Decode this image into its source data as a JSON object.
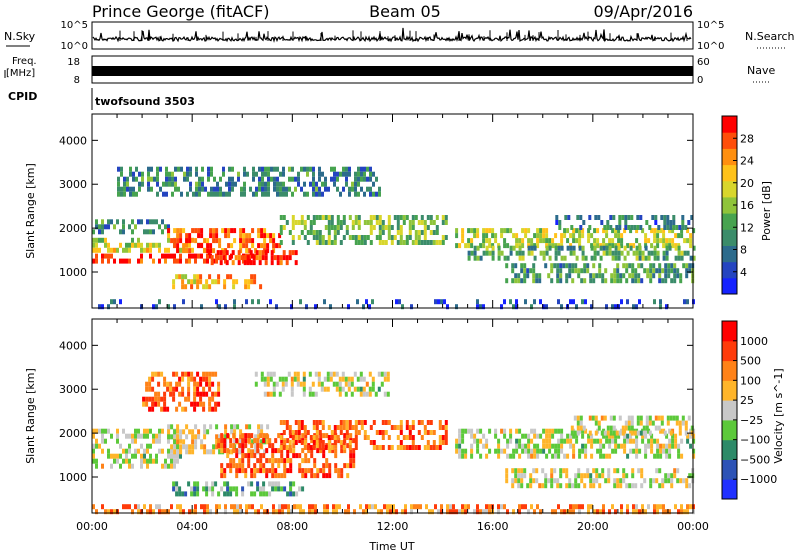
{
  "header": {
    "station": "Prince George (fitACF)",
    "beam": "Beam 05",
    "date": "09/Apr/2016"
  },
  "strips": {
    "nsky": {
      "label": "N.Sky",
      "ticks": [
        "10^5",
        "10^0"
      ]
    },
    "nsearch": {
      "label": "N.Search",
      "ticks": [
        "10^5",
        "10^0"
      ]
    },
    "freq": {
      "label_line1": "Freq.",
      "label_line2": "[MHz]",
      "ticks": [
        "18",
        "8"
      ]
    },
    "nave": {
      "label": "Nave",
      "ticks": [
        "60",
        "0"
      ]
    },
    "cpid": {
      "label": "CPID",
      "value": "twofsound 3503"
    }
  },
  "chart_data": [
    {
      "type": "heatmap",
      "parameter": "Power",
      "xlabel": "",
      "ylabel": "Slant Range [km]",
      "xlim": [
        0,
        24
      ],
      "ylim": [
        180,
        4600
      ],
      "y_ticks": [
        "1000",
        "2000",
        "3000",
        "4000"
      ],
      "colorbar": {
        "label": "Power [dB]",
        "ticks": [
          "4",
          "8",
          "12",
          "16",
          "20",
          "24",
          "28"
        ],
        "colors": [
          "#1522ff",
          "#2444c0",
          "#2c6b8c",
          "#3b8c6a",
          "#47a34f",
          "#8fc43a",
          "#d8d62c",
          "#ffc21a",
          "#ff8f0f",
          "#ff4e0a",
          "#ff0000"
        ]
      },
      "echo_bands": [
        {
          "t_start": 0.0,
          "t_end": 6.6,
          "range_start": 1220,
          "range_end": 1420,
          "level": 0.95
        },
        {
          "t_start": 0.0,
          "t_end": 4.5,
          "range_start": 1520,
          "range_end": 1780,
          "level": 0.6
        },
        {
          "t_start": 0.0,
          "t_end": 3.0,
          "range_start": 1920,
          "range_end": 2200,
          "level": 0.3
        },
        {
          "t_start": 3.0,
          "t_end": 7.5,
          "range_start": 1500,
          "range_end": 2000,
          "level": 0.85
        },
        {
          "t_start": 4.5,
          "t_end": 8.2,
          "range_start": 1200,
          "range_end": 1500,
          "level": 0.95
        },
        {
          "t_start": 3.2,
          "t_end": 6.7,
          "range_start": 650,
          "range_end": 950,
          "level": 0.7
        },
        {
          "t_start": 7.5,
          "t_end": 14.2,
          "range_start": 1700,
          "range_end": 2300,
          "level": 0.45
        },
        {
          "t_start": 14.5,
          "t_end": 24.0,
          "range_start": 1600,
          "range_end": 2000,
          "level": 0.55
        },
        {
          "t_start": 15.0,
          "t_end": 24.0,
          "range_start": 1300,
          "range_end": 1600,
          "level": 0.4
        },
        {
          "t_start": 16.5,
          "t_end": 24.0,
          "range_start": 800,
          "range_end": 1200,
          "level": 0.35
        },
        {
          "t_start": 18.5,
          "t_end": 24.0,
          "range_start": 2050,
          "range_end": 2300,
          "level": 0.25
        },
        {
          "t_start": 1.0,
          "t_end": 11.5,
          "range_start": 2800,
          "range_end": 3400,
          "level": 0.3
        },
        {
          "t_start": 0.0,
          "t_end": 24.0,
          "range_start": 200,
          "range_end": 380,
          "level": 0.15
        }
      ]
    },
    {
      "type": "heatmap",
      "parameter": "Velocity",
      "xlabel": "Time UT",
      "ylabel": "Slant Range [km]",
      "xlim": [
        0,
        24
      ],
      "ylim": [
        180,
        4600
      ],
      "x_ticks": [
        "00:00",
        "04:00",
        "08:00",
        "12:00",
        "16:00",
        "20:00",
        "00:00"
      ],
      "y_ticks": [
        "1000",
        "2000",
        "3000",
        "4000"
      ],
      "colorbar": {
        "label": "Velocity [m s^-1]",
        "ticks": [
          "1000",
          "500",
          "100",
          "25",
          "−25",
          "−100",
          "−500",
          "−1000"
        ],
        "colors": [
          "#2030ff",
          "#2d53b6",
          "#2d8a68",
          "#5cc93a",
          "#c8c8c8",
          "#ffb52a",
          "#ff8218",
          "#ff3b0a",
          "#ff0000"
        ]
      },
      "echo_bands": [
        {
          "t_start": 0.0,
          "t_end": 3.5,
          "range_start": 1200,
          "range_end": 2100,
          "level": 0.5
        },
        {
          "t_start": 3.0,
          "t_end": 7.0,
          "range_start": 1600,
          "range_end": 2200,
          "level": 0.55
        },
        {
          "t_start": 3.2,
          "t_end": 8.4,
          "range_start": 650,
          "range_end": 900,
          "level": 0.35
        },
        {
          "t_start": 5.0,
          "t_end": 10.5,
          "range_start": 1000,
          "range_end": 2000,
          "level": 0.8
        },
        {
          "t_start": 7.5,
          "t_end": 14.2,
          "range_start": 1700,
          "range_end": 2300,
          "level": 0.75
        },
        {
          "t_start": 14.5,
          "t_end": 24.0,
          "range_start": 1500,
          "range_end": 2100,
          "level": 0.5
        },
        {
          "t_start": 16.5,
          "t_end": 24.0,
          "range_start": 800,
          "range_end": 1200,
          "level": 0.5
        },
        {
          "t_start": 19.0,
          "t_end": 24.0,
          "range_start": 2000,
          "range_end": 2400,
          "level": 0.5
        },
        {
          "t_start": 2.0,
          "t_end": 5.0,
          "range_start": 2600,
          "range_end": 3400,
          "level": 0.8
        },
        {
          "t_start": 6.5,
          "t_end": 12.0,
          "range_start": 2900,
          "range_end": 3400,
          "level": 0.5
        },
        {
          "t_start": 0.0,
          "t_end": 24.0,
          "range_start": 200,
          "range_end": 380,
          "level": 0.7
        }
      ]
    }
  ]
}
